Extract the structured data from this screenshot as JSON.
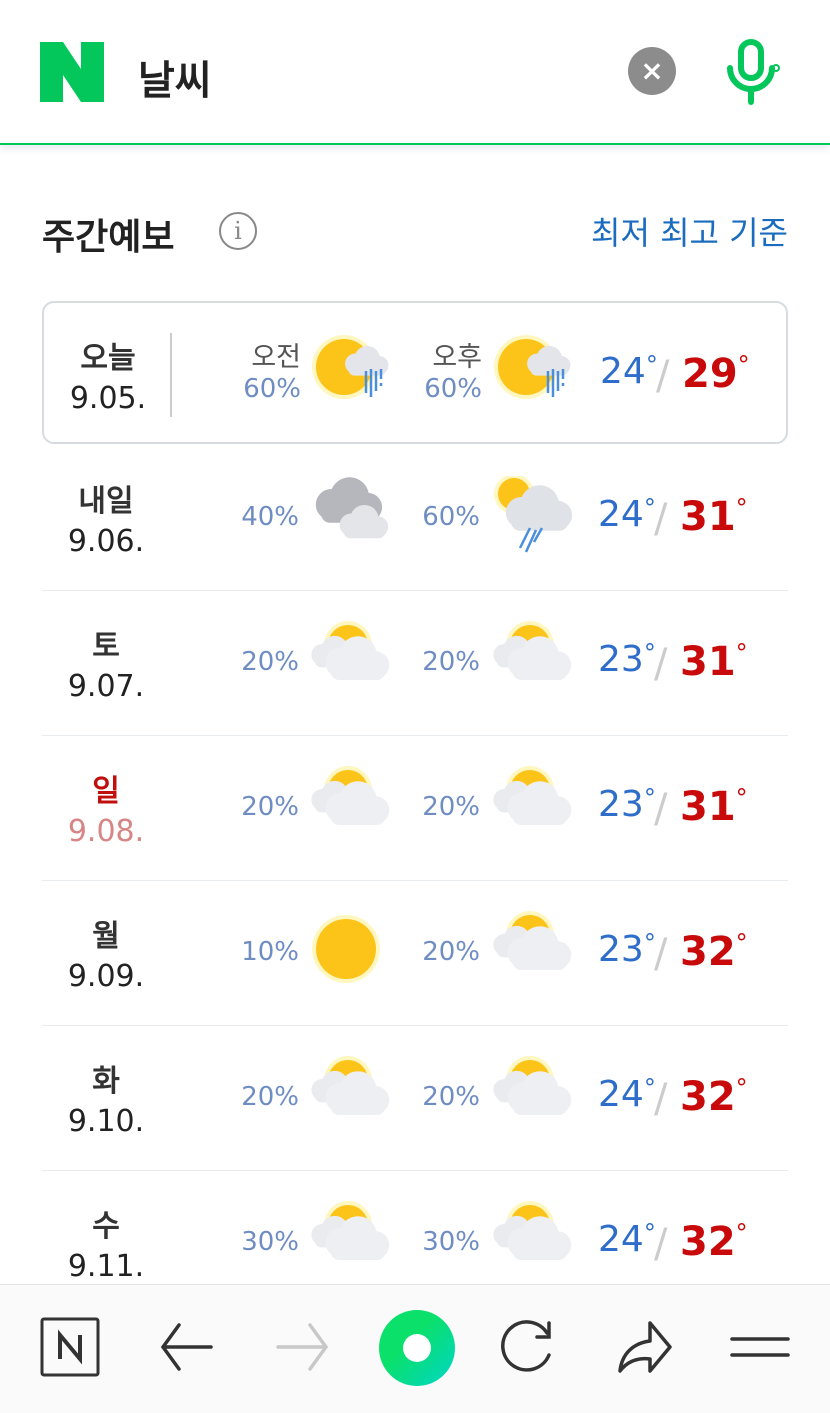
{
  "header": {
    "title": "날씨",
    "clear_icon": "close-icon",
    "mic_icon": "microphone-icon",
    "brand_color": "#03c75a"
  },
  "section": {
    "title": "주간예보",
    "info_icon": "info-icon",
    "basis_link": "최저 최고 기준"
  },
  "days": [
    {
      "name": "오늘",
      "date": "9.05.",
      "am_label": "오전",
      "pm_label": "오후",
      "am_pct": "60%",
      "pm_pct": "60%",
      "am_icon": "sun-cloud-rain",
      "pm_icon": "sun-cloud-rain",
      "low": "24",
      "high": "29",
      "today": true
    },
    {
      "name": "내일",
      "date": "9.06.",
      "am_pct": "40%",
      "pm_pct": "60%",
      "am_icon": "cloudy",
      "pm_icon": "partly-cloudy-rain",
      "low": "24",
      "high": "31"
    },
    {
      "name": "토",
      "date": "9.07.",
      "am_pct": "20%",
      "pm_pct": "20%",
      "am_icon": "partly-cloudy",
      "pm_icon": "partly-cloudy",
      "low": "23",
      "high": "31"
    },
    {
      "name": "일",
      "date": "9.08.",
      "am_pct": "20%",
      "pm_pct": "20%",
      "am_icon": "partly-cloudy",
      "pm_icon": "partly-cloudy",
      "low": "23",
      "high": "31",
      "sunday": true
    },
    {
      "name": "월",
      "date": "9.09.",
      "am_pct": "10%",
      "pm_pct": "20%",
      "am_icon": "sunny",
      "pm_icon": "partly-cloudy",
      "low": "23",
      "high": "32"
    },
    {
      "name": "화",
      "date": "9.10.",
      "am_pct": "20%",
      "pm_pct": "20%",
      "am_icon": "partly-cloudy",
      "pm_icon": "partly-cloudy",
      "low": "24",
      "high": "32"
    },
    {
      "name": "수",
      "date": "9.11.",
      "am_pct": "30%",
      "pm_pct": "30%",
      "am_icon": "partly-cloudy",
      "pm_icon": "partly-cloudy",
      "low": "24",
      "high": "32"
    }
  ],
  "degree": "°",
  "toolbar": [
    "naver-home-icon",
    "back-arrow-icon",
    "forward-arrow-icon",
    "green-dot-icon",
    "refresh-icon",
    "share-icon",
    "menu-icon"
  ]
}
